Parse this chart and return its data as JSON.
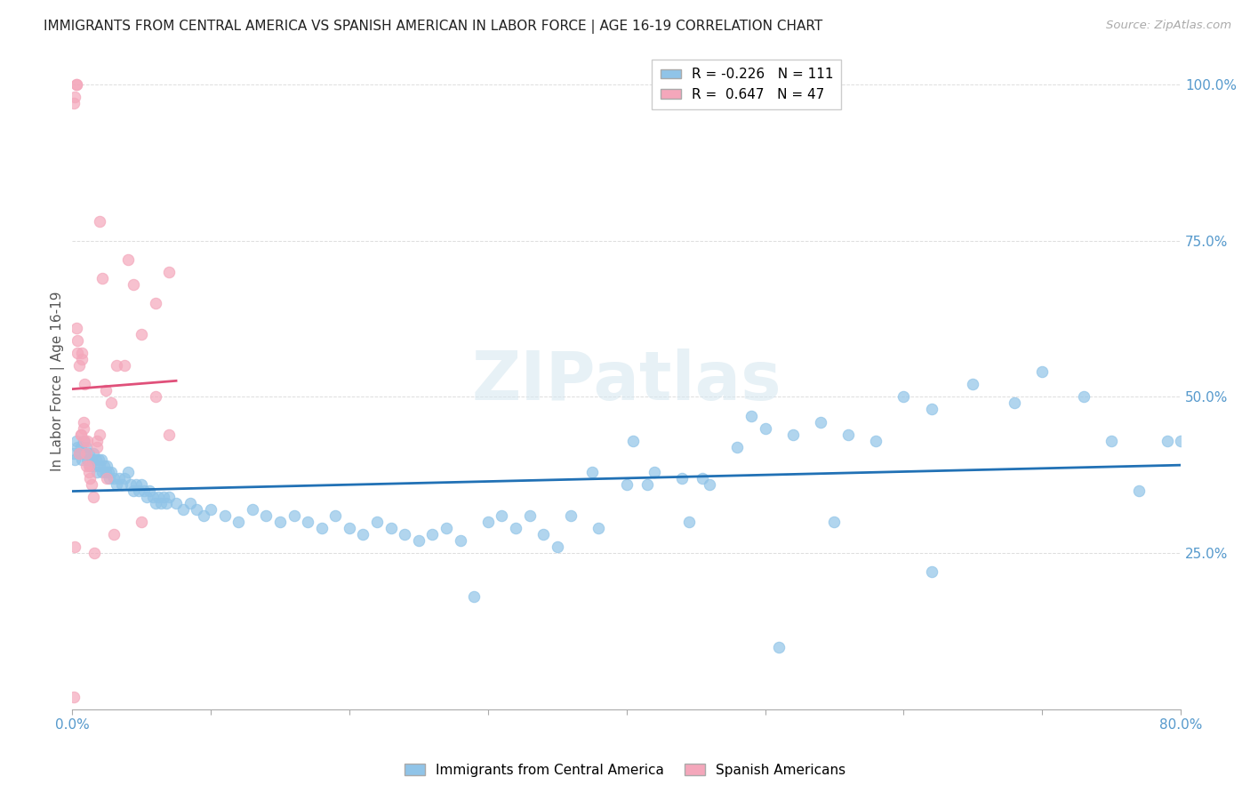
{
  "title": "IMMIGRANTS FROM CENTRAL AMERICA VS SPANISH AMERICAN IN LABOR FORCE | AGE 16-19 CORRELATION CHART",
  "source": "Source: ZipAtlas.com",
  "ylabel": "In Labor Force | Age 16-19",
  "legend_blue_r": "-0.226",
  "legend_blue_n": "111",
  "legend_pink_r": "0.647",
  "legend_pink_n": "47",
  "legend_blue_label": "Immigrants from Central America",
  "legend_pink_label": "Spanish Americans",
  "blue_color": "#90c4e8",
  "pink_color": "#f4a7bb",
  "blue_line_color": "#2171b5",
  "pink_line_color": "#e0507a",
  "title_color": "#222222",
  "source_color": "#aaaaaa",
  "tick_color": "#5599cc",
  "watermark": "ZIPatlas",
  "blue_x": [
    0.001,
    0.002,
    0.003,
    0.004,
    0.005,
    0.006,
    0.007,
    0.008,
    0.009,
    0.01,
    0.011,
    0.012,
    0.013,
    0.014,
    0.015,
    0.016,
    0.017,
    0.018,
    0.019,
    0.02,
    0.021,
    0.022,
    0.023,
    0.024,
    0.025,
    0.026,
    0.027,
    0.028,
    0.03,
    0.032,
    0.034,
    0.036,
    0.038,
    0.04,
    0.042,
    0.044,
    0.046,
    0.048,
    0.05,
    0.052,
    0.054,
    0.056,
    0.058,
    0.06,
    0.062,
    0.064,
    0.066,
    0.068,
    0.07,
    0.075,
    0.08,
    0.085,
    0.09,
    0.095,
    0.1,
    0.11,
    0.12,
    0.13,
    0.14,
    0.15,
    0.16,
    0.17,
    0.18,
    0.19,
    0.2,
    0.21,
    0.22,
    0.23,
    0.24,
    0.25,
    0.26,
    0.27,
    0.28,
    0.3,
    0.32,
    0.34,
    0.36,
    0.38,
    0.4,
    0.42,
    0.44,
    0.46,
    0.48,
    0.5,
    0.52,
    0.54,
    0.56,
    0.58,
    0.6,
    0.62,
    0.65,
    0.68,
    0.7,
    0.73,
    0.75,
    0.77,
    0.79,
    0.8,
    0.49,
    0.35,
    0.31,
    0.415,
    0.455,
    0.51,
    0.62,
    0.55,
    0.29,
    0.405,
    0.33,
    0.375,
    0.445
  ],
  "blue_y": [
    0.41,
    0.4,
    0.43,
    0.42,
    0.41,
    0.42,
    0.4,
    0.43,
    0.41,
    0.42,
    0.4,
    0.41,
    0.39,
    0.4,
    0.41,
    0.39,
    0.4,
    0.38,
    0.4,
    0.39,
    0.4,
    0.38,
    0.39,
    0.38,
    0.39,
    0.38,
    0.37,
    0.38,
    0.37,
    0.36,
    0.37,
    0.36,
    0.37,
    0.38,
    0.36,
    0.35,
    0.36,
    0.35,
    0.36,
    0.35,
    0.34,
    0.35,
    0.34,
    0.33,
    0.34,
    0.33,
    0.34,
    0.33,
    0.34,
    0.33,
    0.32,
    0.33,
    0.32,
    0.31,
    0.32,
    0.31,
    0.3,
    0.32,
    0.31,
    0.3,
    0.31,
    0.3,
    0.29,
    0.31,
    0.29,
    0.28,
    0.3,
    0.29,
    0.28,
    0.27,
    0.28,
    0.29,
    0.27,
    0.3,
    0.29,
    0.28,
    0.31,
    0.29,
    0.36,
    0.38,
    0.37,
    0.36,
    0.42,
    0.45,
    0.44,
    0.46,
    0.44,
    0.43,
    0.5,
    0.48,
    0.52,
    0.49,
    0.54,
    0.5,
    0.43,
    0.35,
    0.43,
    0.43,
    0.47,
    0.26,
    0.31,
    0.36,
    0.37,
    0.1,
    0.22,
    0.3,
    0.18,
    0.43,
    0.31,
    0.38,
    0.3
  ],
  "pink_x": [
    0.001,
    0.002,
    0.003,
    0.003,
    0.004,
    0.005,
    0.006,
    0.007,
    0.008,
    0.009,
    0.01,
    0.011,
    0.012,
    0.013,
    0.014,
    0.016,
    0.018,
    0.02,
    0.022,
    0.024,
    0.028,
    0.032,
    0.038,
    0.044,
    0.05,
    0.06,
    0.07,
    0.001,
    0.002,
    0.003,
    0.004,
    0.005,
    0.006,
    0.007,
    0.008,
    0.009,
    0.01,
    0.012,
    0.015,
    0.018,
    0.02,
    0.025,
    0.03,
    0.04,
    0.05,
    0.06,
    0.07
  ],
  "pink_y": [
    0.97,
    0.98,
    1.0,
    1.0,
    0.57,
    0.55,
    0.44,
    0.57,
    0.45,
    0.43,
    0.41,
    0.43,
    0.39,
    0.37,
    0.36,
    0.25,
    0.43,
    0.78,
    0.69,
    0.51,
    0.49,
    0.55,
    0.55,
    0.68,
    0.6,
    0.65,
    0.7,
    0.02,
    0.26,
    0.61,
    0.59,
    0.41,
    0.44,
    0.56,
    0.46,
    0.52,
    0.39,
    0.38,
    0.34,
    0.42,
    0.44,
    0.37,
    0.28,
    0.72,
    0.3,
    0.5,
    0.44
  ],
  "xlim": [
    0.0,
    0.8
  ],
  "ylim": [
    0.0,
    1.05
  ],
  "xtick_positions": [
    0.0,
    0.1,
    0.2,
    0.3,
    0.4,
    0.5,
    0.6,
    0.7,
    0.8
  ],
  "ytick_positions": [
    0.0,
    0.25,
    0.5,
    0.75,
    1.0
  ],
  "right_ytick_labels": [
    "",
    "25.0%",
    "50.0%",
    "75.0%",
    "100.0%"
  ],
  "xtick_labels_show": [
    "0.0%",
    "",
    "",
    "",
    "",
    "",
    "",
    "",
    "80.0%"
  ]
}
